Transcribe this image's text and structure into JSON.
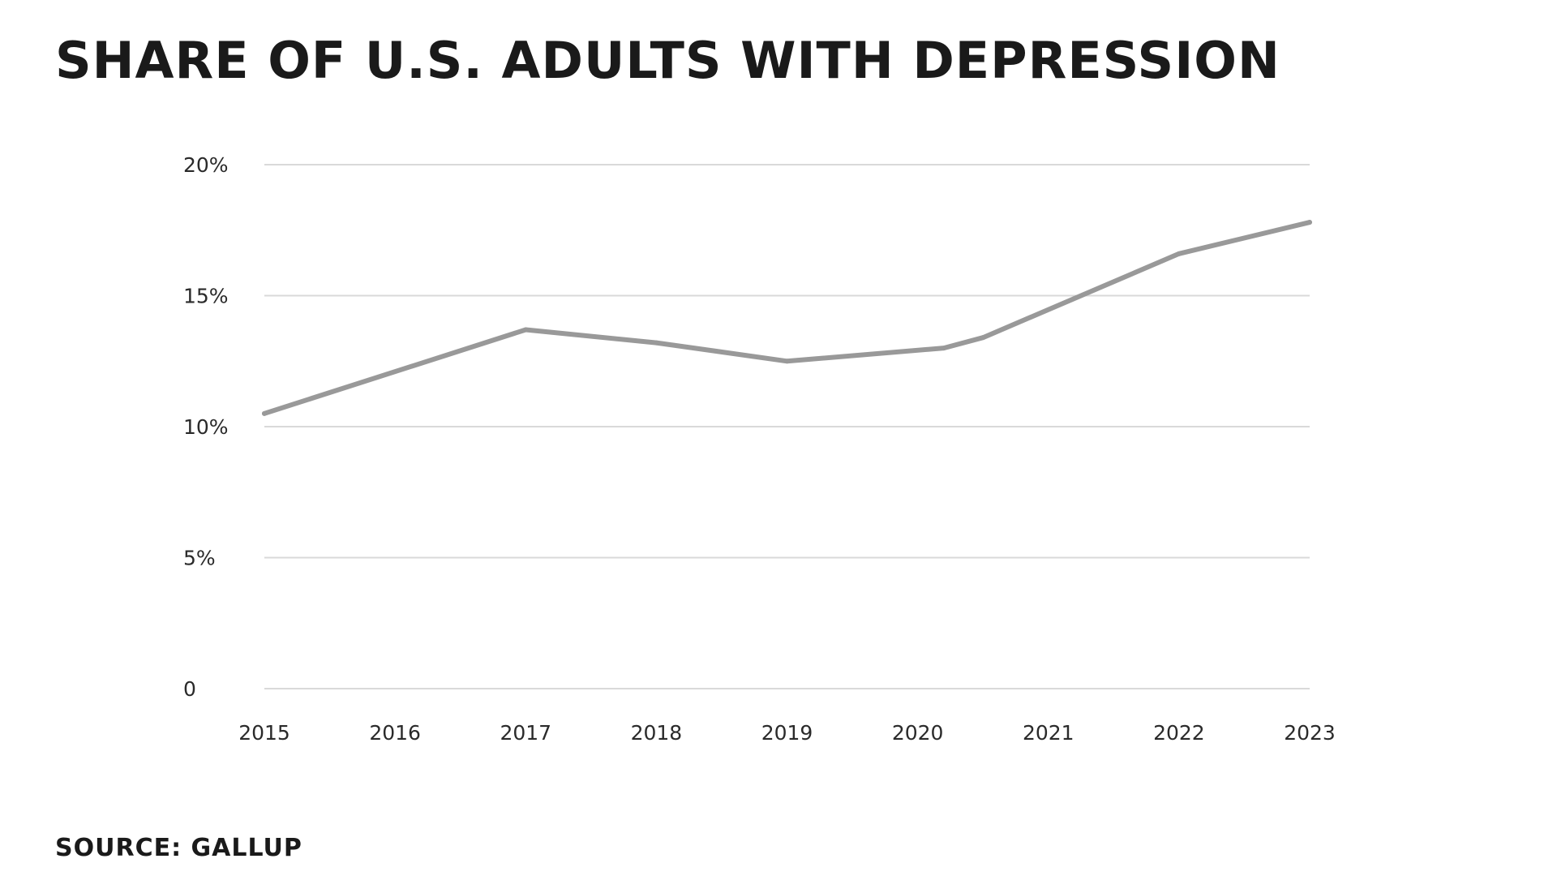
{
  "chart_data": {
    "type": "line",
    "title": "SHARE OF U.S. ADULTS WITH DEPRESSION",
    "source": "SOURCE: GALLUP",
    "x_ticks": [
      "2015",
      "2016",
      "2017",
      "2018",
      "2019",
      "2020",
      "2021",
      "2022",
      "2023"
    ],
    "y_ticks": [
      "0",
      "5%",
      "10%",
      "15%",
      "20%"
    ],
    "y_tick_values": [
      0,
      5,
      10,
      15,
      20
    ],
    "x_range": [
      2015,
      2023
    ],
    "ylim": [
      0,
      20
    ],
    "grid": true,
    "legend": "none",
    "series": [
      {
        "color": "#999999",
        "points": [
          {
            "x": 2015.0,
            "y": 10.5
          },
          {
            "x": 2017.0,
            "y": 13.7
          },
          {
            "x": 2018.0,
            "y": 13.2
          },
          {
            "x": 2019.0,
            "y": 12.5
          },
          {
            "x": 2020.2,
            "y": 13.0
          },
          {
            "x": 2020.5,
            "y": 13.4
          },
          {
            "x": 2022.0,
            "y": 16.6
          },
          {
            "x": 2023.0,
            "y": 17.8
          }
        ]
      }
    ],
    "colors": {
      "grid": "#d9d9d9",
      "line": "#999999",
      "text": "#1a1a1a"
    }
  }
}
